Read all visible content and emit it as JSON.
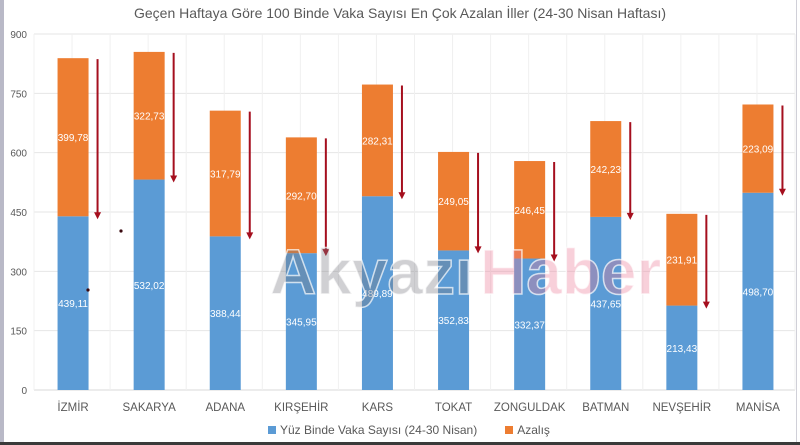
{
  "chart_data": {
    "type": "bar",
    "stacked": true,
    "title": "Geçen Haftaya Göre 100 Binde Vaka Sayısı En Çok Azalan İller (24-30 Nisan Haftası)",
    "xlabel": "",
    "ylabel": "",
    "ylim": [
      0,
      900
    ],
    "yticks": [
      0,
      150,
      300,
      450,
      600,
      750,
      900
    ],
    "grid": true,
    "legend_position": "bottom",
    "categories": [
      "İZMİR",
      "SAKARYA",
      "ADANA",
      "KIRŞEHİR",
      "KARS",
      "TOKAT",
      "ZONGULDAK",
      "BATMAN",
      "NEVŞEHİR",
      "MANİSA"
    ],
    "series": [
      {
        "name": "Yüz Binde Vaka Sayısı (24-30 Nisan)",
        "color": "#5B9BD5",
        "values": [
          439.11,
          532.02,
          388.44,
          345.95,
          489.89,
          352.83,
          332.37,
          437.65,
          213.43,
          498.7
        ],
        "labels": [
          "439,11",
          "532,02",
          "388,44",
          "345,95",
          "489,89",
          "352,83",
          "332,37",
          "437,65",
          "213,43",
          "498,70"
        ]
      },
      {
        "name": "Azalış",
        "color": "#ED7D31",
        "values": [
          399.78,
          322.73,
          317.79,
          292.7,
          282.31,
          249.05,
          246.45,
          242.23,
          231.91,
          223.09
        ],
        "labels": [
          "399,78",
          "322,73",
          "317,79",
          "292,70",
          "282,31",
          "249,05",
          "246,45",
          "242,23",
          "231,91",
          "223,09"
        ]
      }
    ],
    "annotations": {
      "decrease_arrows": true,
      "arrow_color": "#A50F1E"
    }
  },
  "watermark": {
    "part1": "Akyazı",
    "part2": "Haber"
  },
  "colors": {
    "blue": "#5B9BD5",
    "orange": "#ED7D31",
    "arrow": "#A50F1E",
    "grid": "#e6e6e6",
    "text": "#595959"
  }
}
